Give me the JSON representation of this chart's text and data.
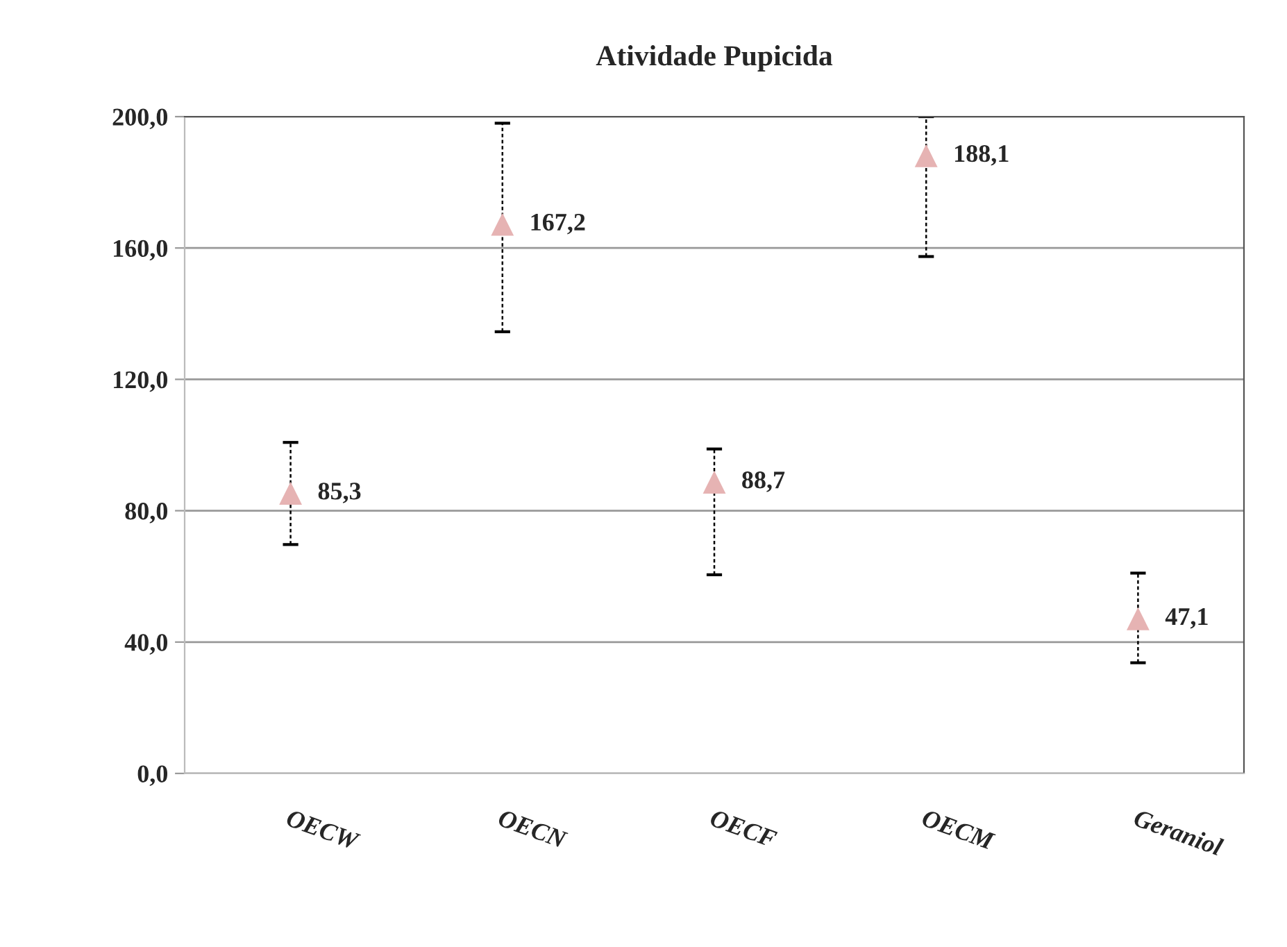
{
  "chart_data": {
    "type": "scatter",
    "title": "Atividade Pupicida",
    "categories": [
      "OECW",
      "OECN",
      "OECF",
      "OECM",
      "Geraniol"
    ],
    "series": [
      {
        "color": "#e6b3b3",
        "values": [
          85.3,
          167.2,
          88.7,
          188.1,
          47.1
        ],
        "value_labels": [
          "85,3",
          "167,2",
          "88,7",
          "188,1",
          "47,1"
        ],
        "errors": [
          [
            69.7,
            100.8
          ],
          [
            134.5,
            198.0
          ],
          [
            60.5,
            98.8
          ],
          [
            157.4,
            200.0
          ],
          [
            33.7,
            61.0
          ]
        ]
      }
    ],
    "ylim": [
      0,
      200
    ],
    "yticks": [
      {
        "value": 0,
        "label": "0,0"
      },
      {
        "value": 40,
        "label": "40,0"
      },
      {
        "value": 80,
        "label": "80,0"
      },
      {
        "value": 120,
        "label": "120,0"
      },
      {
        "value": 160,
        "label": "160,0"
      },
      {
        "value": 200,
        "label": "200,0"
      }
    ],
    "grid": "y",
    "marker": "triangle",
    "legend": false
  }
}
